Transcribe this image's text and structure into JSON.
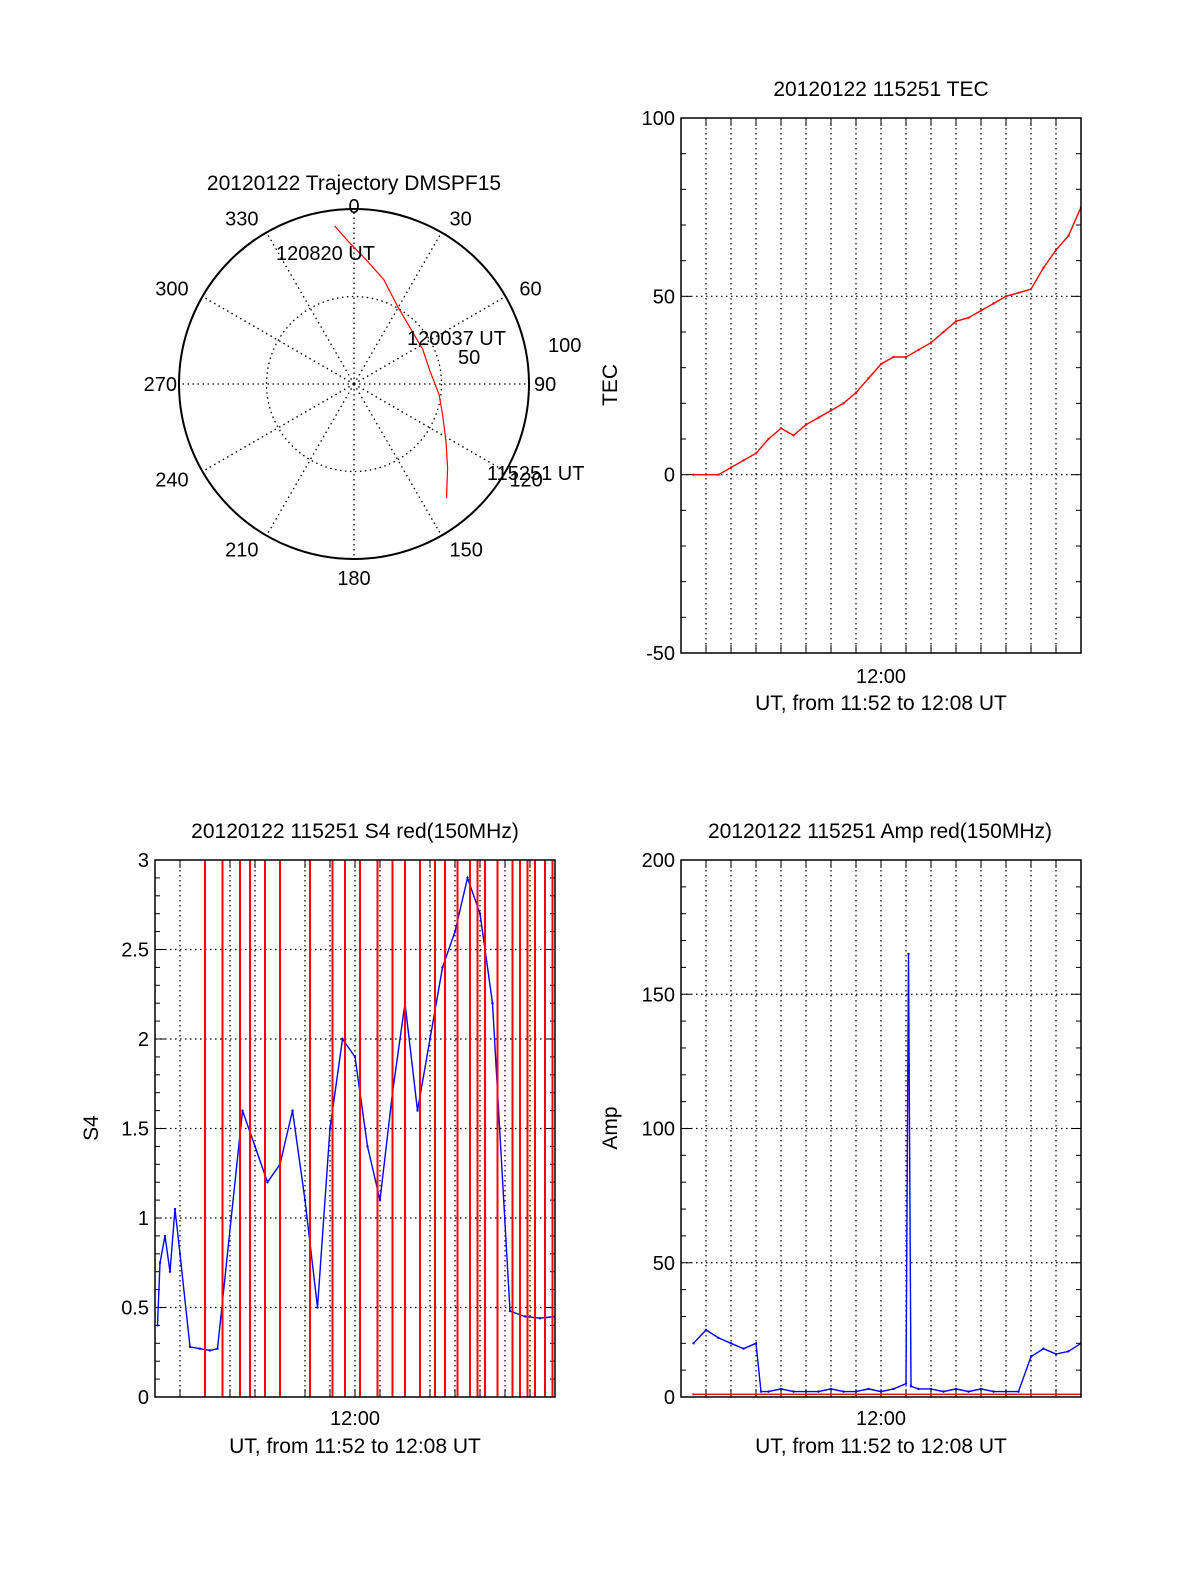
{
  "colors": {
    "red": "#ff0000",
    "blue": "#0000ff",
    "axis": "#000000",
    "grid": "#000000"
  },
  "chart_data": [
    {
      "type": "scatter",
      "subtype": "polar",
      "title": "20120122 Trajectory DMSPF15",
      "angle_labels": [
        "0",
        "30",
        "60",
        "90",
        "120",
        "150",
        "180",
        "210",
        "240",
        "270",
        "300",
        "330"
      ],
      "radius_labels": [
        "50",
        "100"
      ],
      "grid": true,
      "series": [
        {
          "color": "#ff0000",
          "points": [
            {
              "az": 141,
              "zen": 84
            },
            {
              "az": 132,
              "zen": 72
            },
            {
              "az": 122,
              "zen": 62
            },
            {
              "az": 110,
              "zen": 54
            },
            {
              "az": 97,
              "zen": 49
            },
            {
              "az": 80,
              "zen": 44
            },
            {
              "az": 63,
              "zen": 44
            },
            {
              "az": 47,
              "zen": 45
            },
            {
              "az": 29,
              "zen": 51
            },
            {
              "az": 16,
              "zen": 62
            },
            {
              "az": 5,
              "zen": 72
            },
            {
              "az": -2,
              "zen": 81
            },
            {
              "az": -7,
              "zen": 91
            }
          ]
        }
      ],
      "annotations": [
        "115251 UT",
        "120037 UT",
        "120820 UT"
      ]
    },
    {
      "type": "line",
      "title": "20120122 115251 TEC",
      "ylabel": "TEC",
      "xlabel": "UT, from 11:52 to 12:08 UT",
      "xtick_labels": [
        "12:00"
      ],
      "xlim_minutes": [
        -8,
        8
      ],
      "ylim": [
        -50,
        100
      ],
      "yticks": [
        "100",
        "50",
        "0",
        "-50"
      ],
      "grid": true,
      "series": [
        {
          "color": "#ff0000",
          "x": [
            -7.5,
            -7.0,
            -6.5,
            -6.0,
            -5.5,
            -5.0,
            -4.5,
            -4.0,
            -3.5,
            -3.0,
            -2.5,
            -2.0,
            -1.5,
            -1.0,
            -0.5,
            0.0,
            0.5,
            1.0,
            1.5,
            2.0,
            2.5,
            3.0,
            3.5,
            4.0,
            4.5,
            5.0,
            5.5,
            6.0,
            6.5,
            7.0,
            7.5,
            8.0
          ],
          "y": [
            0,
            0,
            0,
            2,
            4,
            6,
            10,
            13,
            11,
            14,
            16,
            18,
            20,
            23,
            27,
            31,
            33,
            33,
            35,
            37,
            40,
            43,
            44,
            46,
            48,
            50,
            51,
            52,
            58,
            63,
            67,
            75
          ]
        }
      ]
    },
    {
      "type": "line",
      "title": "20120122 115251 S4 red(150MHz)",
      "ylabel": "S4",
      "xlabel": "UT, from 11:52 to 12:08 UT",
      "xtick_labels": [
        "12:00"
      ],
      "xlim_minutes": [
        -8,
        8
      ],
      "ylim": [
        0,
        3
      ],
      "yticks": [
        "3",
        "2.5",
        "2",
        "1.5",
        "1",
        "0.5",
        "0"
      ],
      "grid": true,
      "series": [
        {
          "color": "#0000ff",
          "x": [
            -7.9,
            -7.8,
            -7.6,
            -7.4,
            -7.2,
            -7.0,
            -6.6,
            -6.2,
            -5.8,
            -5.5,
            -4.5,
            -4.0,
            -3.5,
            -3.0,
            -2.5,
            -2.0,
            -1.5,
            -1.0,
            -0.5,
            0.0,
            0.5,
            1.0,
            1.5,
            2.0,
            2.5,
            3.0,
            3.5,
            4.0,
            4.5,
            5.0,
            5.5,
            6.2,
            6.8,
            7.4,
            8.0
          ],
          "y": [
            0.4,
            0.75,
            0.9,
            0.7,
            1.05,
            0.8,
            0.28,
            0.27,
            0.26,
            0.27,
            1.6,
            1.4,
            1.2,
            1.3,
            1.6,
            1.1,
            0.5,
            1.5,
            2.0,
            1.9,
            1.4,
            1.1,
            1.7,
            2.2,
            1.6,
            2.0,
            2.4,
            2.6,
            2.9,
            2.7,
            2.2,
            0.48,
            0.45,
            0.44,
            0.45
          ]
        },
        {
          "color": "#ff0000",
          "x": [
            -6.0,
            -5.3,
            -4.6,
            -4.2,
            -3.6,
            -3.0,
            -1.8,
            -0.9,
            -0.4,
            0.2,
            0.9,
            1.5,
            2.0,
            2.6,
            3.2,
            3.6,
            4.1,
            4.6,
            4.9,
            5.2,
            5.7,
            6.3,
            6.6,
            6.9,
            7.2,
            7.6,
            7.9
          ],
          "y": [
            3,
            3,
            3,
            3,
            3,
            3,
            3,
            3,
            3,
            3,
            3,
            3,
            3,
            3,
            3,
            3,
            3,
            3,
            3,
            3,
            3,
            3,
            3,
            3,
            3,
            3,
            3
          ]
        }
      ]
    },
    {
      "type": "line",
      "title": "20120122 115251 Amp red(150MHz)",
      "ylabel": "Amp",
      "xlabel": "UT, from 11:52 to 12:08 UT",
      "xtick_labels": [
        "12:00"
      ],
      "xlim_minutes": [
        -8,
        8
      ],
      "ylim": [
        0,
        200
      ],
      "yticks": [
        "200",
        "150",
        "100",
        "50",
        "0"
      ],
      "grid": true,
      "series": [
        {
          "color": "#0000ff",
          "x": [
            -7.5,
            -7.0,
            -6.5,
            -6.0,
            -5.5,
            -5.0,
            -4.8,
            -4.5,
            -4.0,
            -3.5,
            -3.0,
            -2.5,
            -2.0,
            -1.5,
            -1.0,
            -0.5,
            0.0,
            0.5,
            1.0,
            1.1,
            1.2,
            1.5,
            2.0,
            2.5,
            3.0,
            3.5,
            4.0,
            4.5,
            5.0,
            5.5,
            6.0,
            6.5,
            7.0,
            7.5,
            8.0
          ],
          "y": [
            20,
            25,
            22,
            20,
            18,
            20,
            2,
            2,
            3,
            2,
            2,
            2,
            3,
            2,
            2,
            3,
            2,
            3,
            5,
            165,
            4,
            3,
            3,
            2,
            3,
            2,
            3,
            2,
            2,
            2,
            15,
            18,
            16,
            17,
            20
          ]
        },
        {
          "color": "#ff0000",
          "x": [
            -7.5,
            8.0
          ],
          "y": [
            1,
            1
          ]
        }
      ]
    }
  ]
}
